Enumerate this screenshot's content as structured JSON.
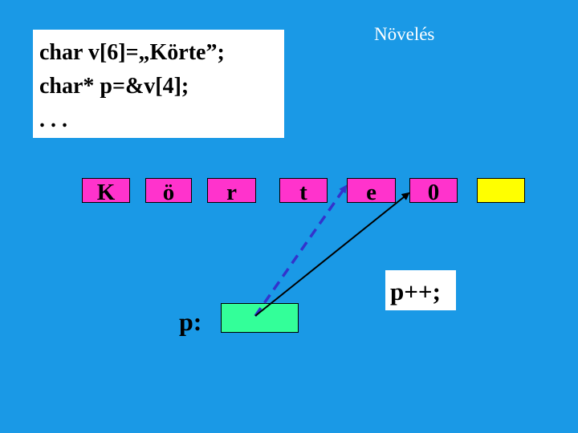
{
  "title": "Növelés",
  "code": {
    "lines": [
      "char v[6]=„Körte”;",
      "char* p=&v[4];",
      ". . ."
    ]
  },
  "array": {
    "cells": [
      "K",
      "ö",
      "r",
      "t",
      "e",
      "0",
      ""
    ]
  },
  "pointer": {
    "label": "p:"
  },
  "operation": {
    "label": "p++;"
  },
  "colors": {
    "background": "#1a99e6",
    "cell": "#ff33cc",
    "extra_cell": "#ffff00",
    "pointer_box": "#33ff99",
    "old_arrow": "#3333cc",
    "new_arrow": "#000000"
  }
}
